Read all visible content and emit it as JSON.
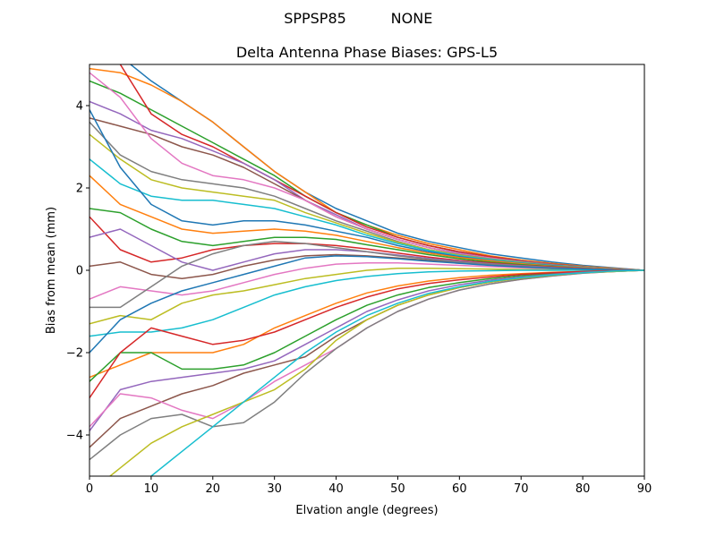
{
  "figure": {
    "suptitle_left": "SPPSP85",
    "suptitle_right": "NONE"
  },
  "chart_data": {
    "type": "line",
    "title": "Delta Antenna Phase Biases: GPS-L5",
    "xlabel": "Elvation angle (degrees)",
    "ylabel": "Bias from mean (mm)",
    "xlim": [
      0,
      90
    ],
    "ylim": [
      -5,
      5
    ],
    "xticks": [
      "0",
      "10",
      "20",
      "30",
      "40",
      "50",
      "60",
      "70",
      "80",
      "90"
    ],
    "yticks": [
      "−4",
      "−2",
      "0",
      "2",
      "4"
    ],
    "grid": false,
    "legend": "none",
    "x": [
      0,
      5,
      10,
      15,
      20,
      25,
      30,
      35,
      40,
      45,
      50,
      55,
      60,
      65,
      70,
      75,
      80,
      85,
      90
    ],
    "color_cycle": [
      "#1f77b4",
      "#ff7f0e",
      "#2ca02c",
      "#d62728",
      "#9467bd",
      "#8c564b",
      "#e377c2",
      "#7f7f7f",
      "#bcbd22",
      "#17becf"
    ],
    "series": [
      {
        "values": [
          5.8,
          5.2,
          4.6,
          4.1,
          3.6,
          3.0,
          2.4,
          1.9,
          1.5,
          1.2,
          0.9,
          0.7,
          0.55,
          0.4,
          0.3,
          0.2,
          0.12,
          0.06,
          0
        ]
      },
      {
        "values": [
          4.9,
          4.8,
          4.5,
          4.1,
          3.6,
          3.0,
          2.4,
          1.9,
          1.4,
          1.1,
          0.85,
          0.65,
          0.5,
          0.35,
          0.25,
          0.17,
          0.1,
          0.05,
          0
        ]
      },
      {
        "values": [
          4.6,
          4.3,
          3.9,
          3.5,
          3.1,
          2.7,
          2.3,
          1.8,
          1.4,
          1.1,
          0.8,
          0.6,
          0.45,
          0.33,
          0.23,
          0.15,
          0.09,
          0.04,
          0
        ]
      },
      {
        "values": [
          5.5,
          5.0,
          3.8,
          3.3,
          3.0,
          2.6,
          2.2,
          1.8,
          1.4,
          1.05,
          0.8,
          0.6,
          0.45,
          0.33,
          0.23,
          0.15,
          0.09,
          0.04,
          0
        ]
      },
      {
        "values": [
          4.1,
          3.8,
          3.4,
          3.2,
          2.9,
          2.6,
          2.2,
          1.7,
          1.35,
          1.0,
          0.75,
          0.55,
          0.42,
          0.3,
          0.22,
          0.14,
          0.08,
          0.04,
          0
        ]
      },
      {
        "values": [
          3.7,
          3.5,
          3.3,
          3.0,
          2.8,
          2.5,
          2.1,
          1.7,
          1.3,
          1.0,
          0.75,
          0.55,
          0.4,
          0.3,
          0.2,
          0.13,
          0.08,
          0.04,
          0
        ]
      },
      {
        "values": [
          4.8,
          4.2,
          3.2,
          2.6,
          2.3,
          2.2,
          2.0,
          1.7,
          1.3,
          1.0,
          0.75,
          0.55,
          0.4,
          0.3,
          0.2,
          0.13,
          0.08,
          0.04,
          0
        ]
      },
      {
        "values": [
          3.6,
          2.8,
          2.4,
          2.2,
          2.1,
          2.0,
          1.8,
          1.5,
          1.2,
          0.95,
          0.7,
          0.5,
          0.38,
          0.28,
          0.2,
          0.13,
          0.08,
          0.04,
          0
        ]
      },
      {
        "values": [
          3.3,
          2.7,
          2.2,
          2.0,
          1.9,
          1.8,
          1.7,
          1.4,
          1.15,
          0.9,
          0.68,
          0.5,
          0.37,
          0.27,
          0.19,
          0.12,
          0.07,
          0.03,
          0
        ]
      },
      {
        "values": [
          2.7,
          2.1,
          1.8,
          1.7,
          1.7,
          1.6,
          1.5,
          1.3,
          1.1,
          0.85,
          0.65,
          0.48,
          0.35,
          0.26,
          0.18,
          0.12,
          0.07,
          0.03,
          0
        ]
      },
      {
        "values": [
          3.9,
          2.5,
          1.6,
          1.2,
          1.1,
          1.2,
          1.2,
          1.1,
          0.95,
          0.8,
          0.6,
          0.45,
          0.33,
          0.24,
          0.17,
          0.11,
          0.06,
          0.03,
          0
        ]
      },
      {
        "values": [
          2.3,
          1.6,
          1.3,
          1.0,
          0.9,
          0.95,
          1.0,
          0.95,
          0.85,
          0.7,
          0.55,
          0.42,
          0.31,
          0.23,
          0.16,
          0.1,
          0.06,
          0.03,
          0
        ]
      },
      {
        "values": [
          1.5,
          1.4,
          1.0,
          0.7,
          0.6,
          0.7,
          0.8,
          0.8,
          0.75,
          0.62,
          0.5,
          0.38,
          0.28,
          0.2,
          0.14,
          0.09,
          0.05,
          0.02,
          0
        ]
      },
      {
        "values": [
          1.3,
          0.5,
          0.2,
          0.3,
          0.5,
          0.6,
          0.65,
          0.65,
          0.6,
          0.52,
          0.42,
          0.32,
          0.24,
          0.18,
          0.12,
          0.08,
          0.05,
          0.02,
          0
        ]
      },
      {
        "values": [
          0.8,
          1.0,
          0.6,
          0.2,
          0.0,
          0.2,
          0.4,
          0.5,
          0.5,
          0.45,
          0.37,
          0.29,
          0.22,
          0.16,
          0.11,
          0.07,
          0.04,
          0.02,
          0
        ]
      },
      {
        "values": [
          0.1,
          0.2,
          -0.1,
          -0.2,
          -0.1,
          0.1,
          0.25,
          0.35,
          0.38,
          0.35,
          0.3,
          0.24,
          0.18,
          0.13,
          0.09,
          0.06,
          0.03,
          0.01,
          0
        ]
      },
      {
        "values": [
          -0.7,
          -0.4,
          -0.5,
          -0.6,
          -0.5,
          -0.3,
          -0.1,
          0.05,
          0.15,
          0.18,
          0.18,
          0.15,
          0.12,
          0.09,
          0.06,
          0.04,
          0.02,
          0.01,
          0
        ]
      },
      {
        "values": [
          -0.9,
          -0.9,
          -0.4,
          0.1,
          0.4,
          0.6,
          0.7,
          0.65,
          0.55,
          0.45,
          0.35,
          0.27,
          0.2,
          0.15,
          0.1,
          0.06,
          0.04,
          0.02,
          0
        ]
      },
      {
        "values": [
          -1.3,
          -1.1,
          -1.2,
          -0.8,
          -0.6,
          -0.5,
          -0.35,
          -0.2,
          -0.1,
          0.0,
          0.05,
          0.05,
          0.04,
          0.03,
          0.02,
          0.01,
          0.01,
          0.0,
          0
        ]
      },
      {
        "values": [
          -1.6,
          -1.5,
          -1.5,
          -1.4,
          -1.2,
          -0.9,
          -0.6,
          -0.4,
          -0.25,
          -0.15,
          -0.08,
          -0.04,
          -0.02,
          -0.01,
          0.0,
          0.0,
          0.0,
          0.0,
          0
        ]
      },
      {
        "values": [
          -2.0,
          -1.2,
          -0.8,
          -0.5,
          -0.3,
          -0.1,
          0.1,
          0.3,
          0.35,
          0.33,
          0.28,
          0.22,
          0.17,
          0.12,
          0.08,
          0.05,
          0.03,
          0.01,
          0
        ]
      },
      {
        "values": [
          -2.6,
          -2.3,
          -2.0,
          -2.0,
          -2.0,
          -1.8,
          -1.4,
          -1.1,
          -0.8,
          -0.55,
          -0.38,
          -0.26,
          -0.18,
          -0.12,
          -0.08,
          -0.05,
          -0.03,
          -0.01,
          0
        ]
      },
      {
        "values": [
          -2.7,
          -2.0,
          -2.0,
          -2.4,
          -2.4,
          -2.3,
          -2.0,
          -1.6,
          -1.2,
          -0.85,
          -0.6,
          -0.42,
          -0.3,
          -0.2,
          -0.13,
          -0.08,
          -0.04,
          -0.02,
          0
        ]
      },
      {
        "values": [
          -3.1,
          -2.0,
          -1.4,
          -1.6,
          -1.8,
          -1.7,
          -1.5,
          -1.2,
          -0.9,
          -0.65,
          -0.45,
          -0.32,
          -0.23,
          -0.16,
          -0.1,
          -0.06,
          -0.03,
          -0.01,
          0
        ]
      },
      {
        "values": [
          -3.9,
          -2.9,
          -2.7,
          -2.6,
          -2.5,
          -2.4,
          -2.2,
          -1.8,
          -1.4,
          -1.0,
          -0.72,
          -0.5,
          -0.35,
          -0.24,
          -0.16,
          -0.1,
          -0.05,
          -0.02,
          0
        ]
      },
      {
        "values": [
          -4.3,
          -3.6,
          -3.3,
          -3.0,
          -2.8,
          -2.5,
          -2.3,
          -2.1,
          -1.6,
          -1.2,
          -0.85,
          -0.6,
          -0.42,
          -0.29,
          -0.19,
          -0.12,
          -0.06,
          -0.03,
          0
        ]
      },
      {
        "values": [
          -3.8,
          -3.0,
          -3.1,
          -3.4,
          -3.6,
          -3.2,
          -2.7,
          -2.3,
          -1.9,
          -1.4,
          -1.0,
          -0.7,
          -0.48,
          -0.33,
          -0.22,
          -0.14,
          -0.07,
          -0.03,
          0
        ]
      },
      {
        "values": [
          -4.6,
          -4.0,
          -3.6,
          -3.5,
          -3.8,
          -3.7,
          -3.2,
          -2.5,
          -1.9,
          -1.4,
          -1.0,
          -0.7,
          -0.48,
          -0.33,
          -0.22,
          -0.14,
          -0.07,
          -0.03,
          0
        ]
      },
      {
        "values": [
          -5.4,
          -4.8,
          -4.2,
          -3.8,
          -3.5,
          -3.2,
          -2.9,
          -2.4,
          -1.7,
          -1.2,
          -0.85,
          -0.6,
          -0.42,
          -0.29,
          -0.19,
          -0.12,
          -0.06,
          -0.03,
          0
        ]
      },
      {
        "values": [
          -6.0,
          -5.4,
          -5.0,
          -4.4,
          -3.8,
          -3.2,
          -2.6,
          -2.0,
          -1.5,
          -1.1,
          -0.8,
          -0.56,
          -0.4,
          -0.27,
          -0.18,
          -0.11,
          -0.06,
          -0.02,
          0
        ]
      }
    ]
  }
}
